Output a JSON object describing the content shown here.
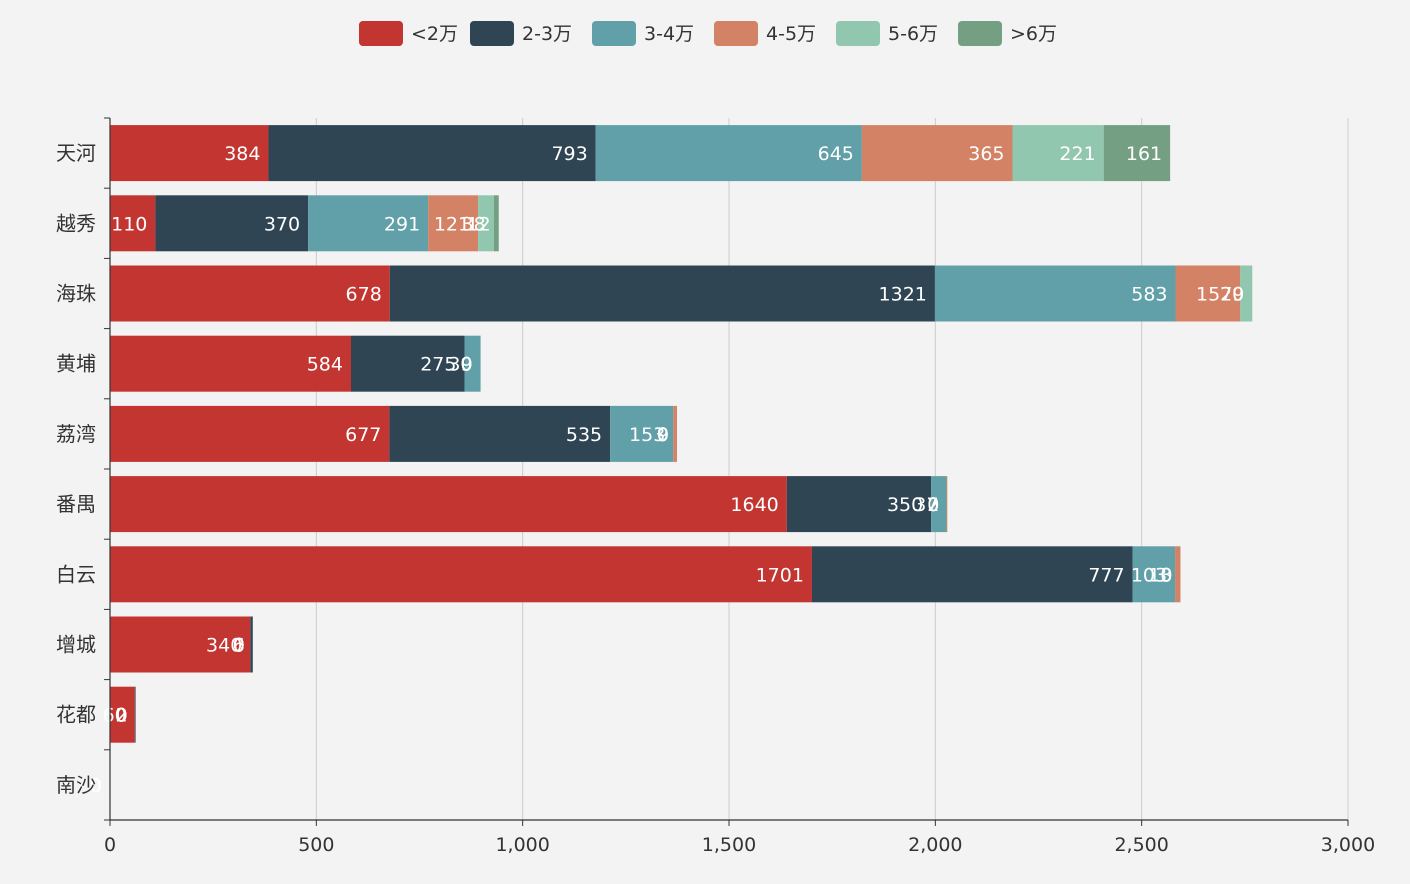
{
  "chart_data": {
    "type": "bar",
    "orientation": "horizontal",
    "stacked": true,
    "categories": [
      "天河",
      "越秀",
      "海珠",
      "黄埔",
      "荔湾",
      "番禺",
      "白云",
      "增城",
      "花都",
      "南沙"
    ],
    "series": [
      {
        "name": "<2万",
        "color": "#c23531",
        "values": [
          384,
          110,
          678,
          584,
          677,
          1640,
          1701,
          340,
          60,
          0
        ]
      },
      {
        "name": "2-3万",
        "color": "#2f4554",
        "values": [
          793,
          370,
          1321,
          275,
          535,
          350,
          777,
          6,
          2,
          0
        ]
      },
      {
        "name": "3-4万",
        "color": "#61a0a8",
        "values": [
          645,
          291,
          583,
          39,
          153,
          37,
          103,
          0,
          0,
          0
        ]
      },
      {
        "name": "4-5万",
        "color": "#d48265",
        "values": [
          365,
          121,
          157,
          0,
          9,
          2,
          13,
          0,
          0,
          0
        ]
      },
      {
        "name": "5-6万",
        "color": "#91c7ae",
        "values": [
          221,
          38,
          29,
          0,
          0,
          0,
          0,
          0,
          0,
          0
        ]
      },
      {
        "name": ">6万",
        "color": "#749f83",
        "values": [
          161,
          12,
          0,
          0,
          0,
          0,
          0,
          0,
          0,
          0
        ]
      }
    ],
    "xlim": [
      0,
      3000
    ],
    "xticks": [
      0,
      500,
      1000,
      1500,
      2000,
      2500,
      3000
    ],
    "xtick_labels": [
      "0",
      "500",
      "1,000",
      "1,500",
      "2,000",
      "2,500",
      "3,000"
    ],
    "grid": true,
    "legend_position": "top-center",
    "title": "",
    "xlabel": "",
    "ylabel": ""
  }
}
